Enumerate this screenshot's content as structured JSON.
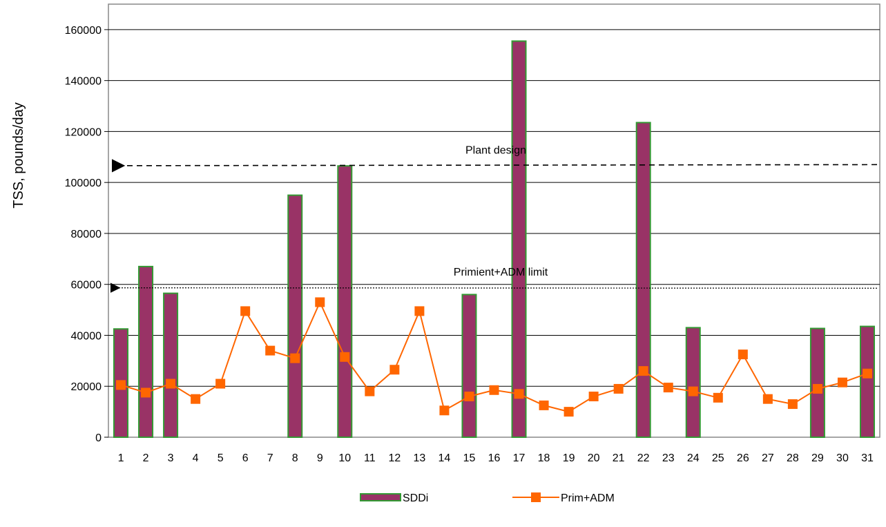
{
  "chart_data": {
    "type": "bar",
    "title": "",
    "xlabel": "",
    "ylabel": "TSS, pounds/day",
    "ylim": [
      0,
      170000
    ],
    "yticks": [
      0,
      20000,
      40000,
      60000,
      80000,
      100000,
      120000,
      140000,
      160000
    ],
    "categories": [
      "1",
      "2",
      "3",
      "4",
      "5",
      "6",
      "7",
      "8",
      "9",
      "10",
      "11",
      "12",
      "13",
      "14",
      "15",
      "16",
      "17",
      "18",
      "19",
      "20",
      "21",
      "22",
      "23",
      "24",
      "25",
      "26",
      "27",
      "28",
      "29",
      "30",
      "31"
    ],
    "series": [
      {
        "name": "SDDi",
        "type": "bar",
        "color": "#993366",
        "edge_color": "#339933",
        "values": [
          42500,
          67000,
          56500,
          null,
          null,
          null,
          null,
          95000,
          null,
          106500,
          null,
          null,
          null,
          null,
          56000,
          null,
          155500,
          null,
          null,
          null,
          null,
          123500,
          null,
          43000,
          null,
          null,
          null,
          null,
          42700,
          null,
          43500
        ]
      },
      {
        "name": "Prim+ADM",
        "type": "line",
        "color": "#ff6600",
        "marker": "square",
        "values": [
          20500,
          17500,
          21000,
          15000,
          21000,
          49500,
          34000,
          31000,
          53000,
          31500,
          18000,
          26500,
          49500,
          10500,
          16000,
          18500,
          17000,
          12500,
          10000,
          16000,
          19000,
          26000,
          19500,
          18000,
          15500,
          32500,
          15000,
          13000,
          19000,
          21500,
          25000
        ]
      }
    ],
    "reference_lines": [
      {
        "label": "Plant design",
        "value": 107000,
        "style": "dashed"
      },
      {
        "label": "Primient+ADM limit",
        "value": 58500,
        "style": "dotted"
      }
    ],
    "grid": "horizontal",
    "legend": "bottom"
  }
}
